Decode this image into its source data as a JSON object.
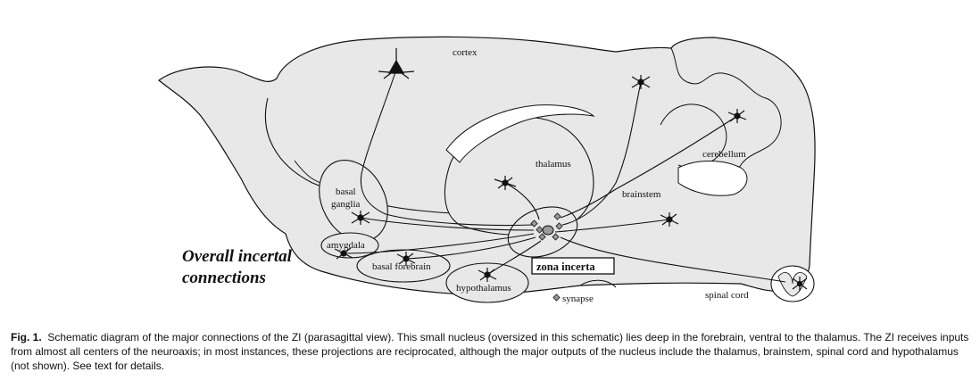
{
  "figure": {
    "labels": {
      "cortex": "cortex",
      "thalamus": "thalamus",
      "cerebellum": "cerebellum",
      "brainstem": "brainstem",
      "basal_ganglia_1": "basal",
      "basal_ganglia_2": "ganglia",
      "amygdala": "amygdala",
      "basal_forebrain": "basal forebrain",
      "hypothalamus": "hypothalamus",
      "zona_incerta": "zona incerta",
      "spinal_cord": "spinal cord",
      "synapse": "synapse"
    },
    "title_line1": "Overall incertal",
    "title_line2": "connections"
  },
  "caption": {
    "label": "Fig. 1.",
    "text": "Schematic diagram of the major connections of the ZI (parasagittal view). This small nucleus (oversized in this schematic) lies deep in the forebrain, ventral to the thalamus. The ZI receives inputs from almost all centers of the neuroaxis; in most instances, these projections are reciprocated, although the major outputs of the nucleus include the thalamus, brainstem, spinal cord and hypothalamus (not shown). See text for details."
  },
  "colors": {
    "brain_fill": "#e8e8e8",
    "outline": "#111111",
    "synapse": "#9a9a9a"
  }
}
